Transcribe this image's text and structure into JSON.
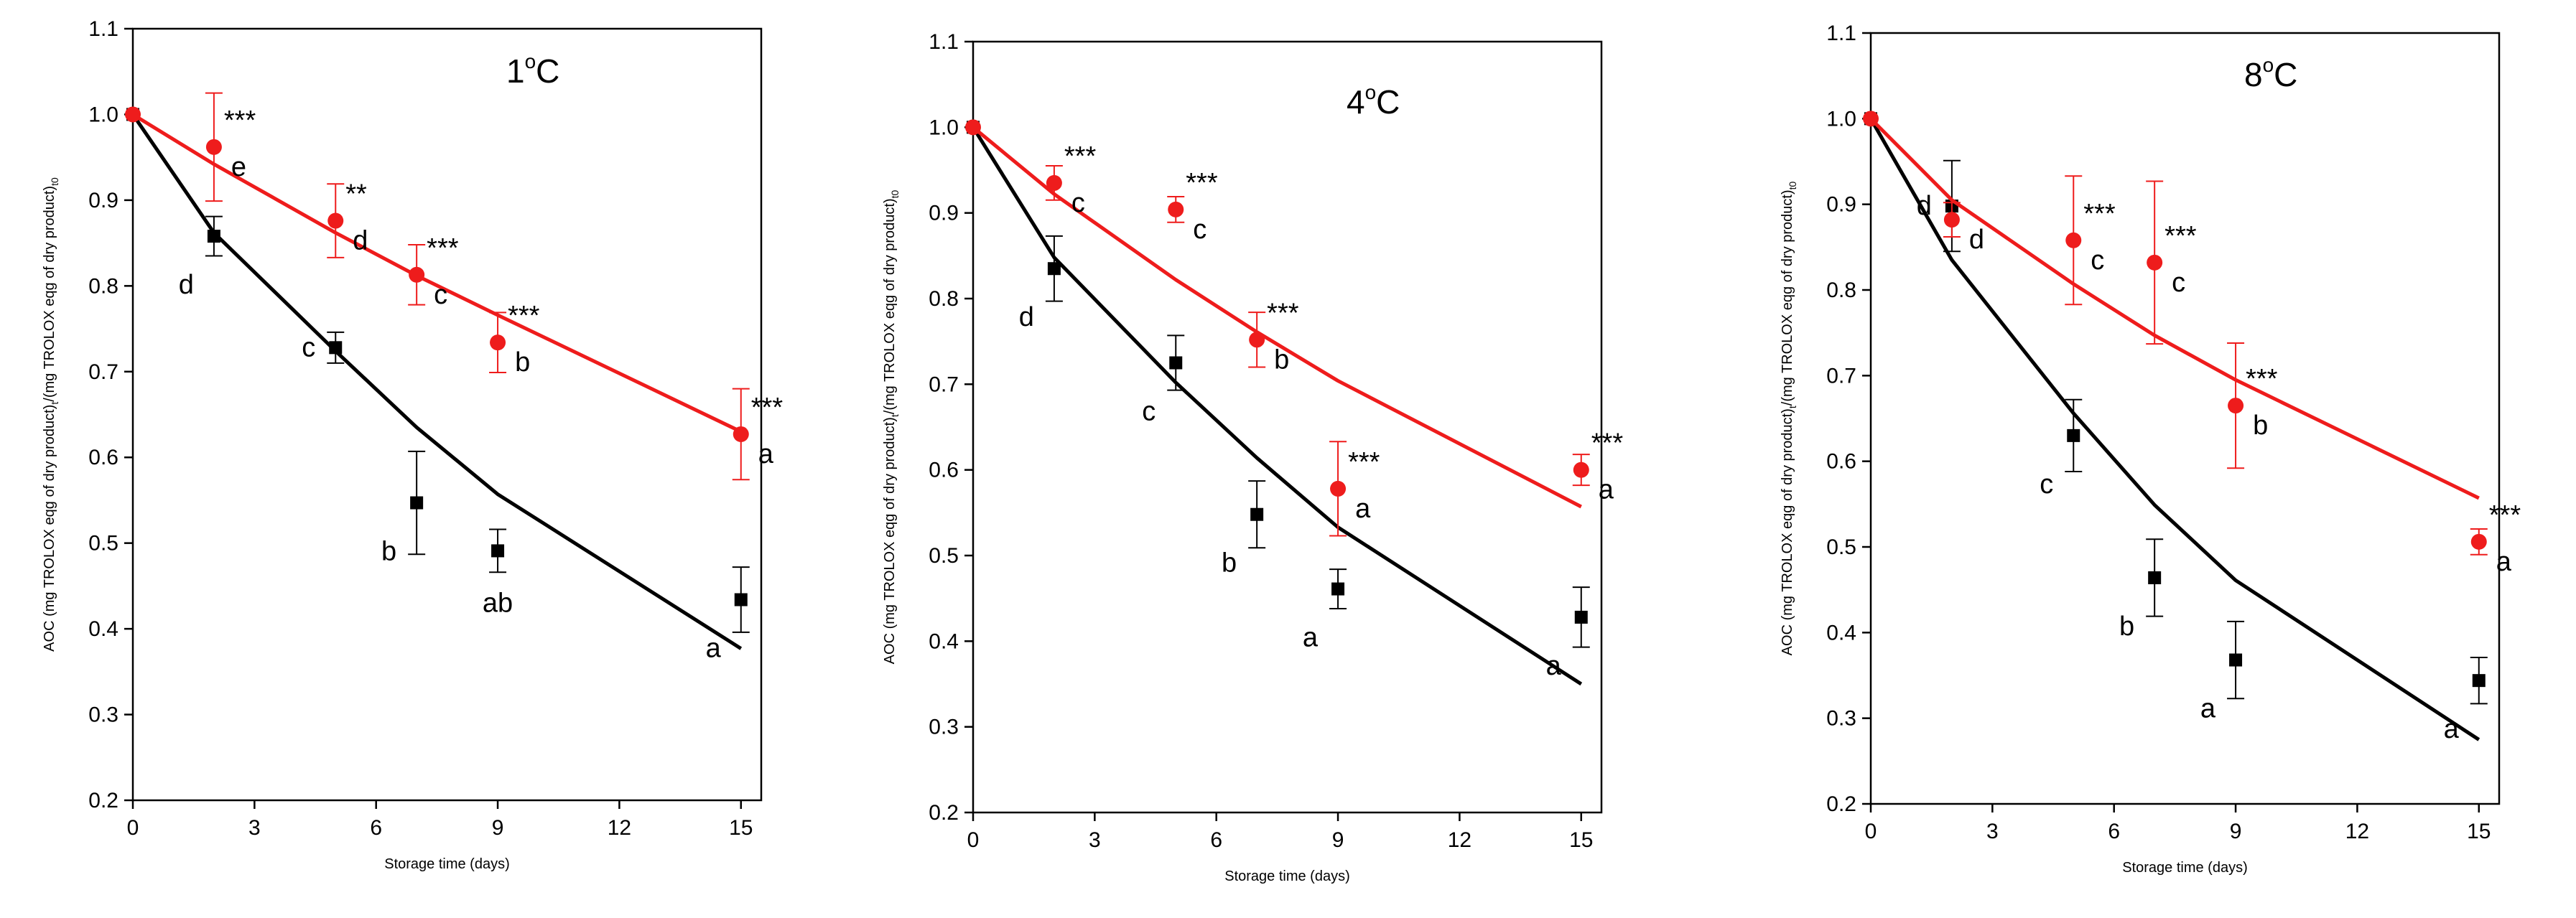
{
  "colors": {
    "measured_a": "#000000",
    "measured_b": "#ee1c1c",
    "axis": "#000000",
    "background": "#ffffff"
  },
  "chart_data": [
    {
      "type": "scatter",
      "title": "1°C",
      "title_base": "1",
      "title_unit": "C",
      "xlabel": "Storage time (days)",
      "ylabel_parts": [
        "AOC (mg TROLOX eqg of dry product)",
        "t",
        "/(mg TROLOX eqg of dry product)",
        "t0"
      ],
      "xlim": [
        0,
        15.5
      ],
      "ylim": [
        0.2,
        1.1
      ],
      "x_ticks": [
        0,
        3,
        6,
        9,
        12,
        15
      ],
      "y_ticks": [
        0.2,
        0.3,
        0.4,
        0.5,
        0.6,
        0.7,
        0.8,
        0.9,
        1.0,
        1.1
      ],
      "y_tick_labels": [
        "0.2",
        "0.3",
        "0.4",
        "0.5",
        "0.6",
        "0.7",
        "0.8",
        "0.9",
        "1.0",
        "1.1"
      ],
      "series": [
        {
          "color": "#000000",
          "marker": "square",
          "x": [
            0,
            2,
            5,
            7,
            9,
            15
          ],
          "y": [
            1.0,
            0.858,
            0.728,
            0.547,
            0.491,
            0.434
          ],
          "err": [
            0,
            0.023,
            0.018,
            0.06,
            0.025,
            0.038
          ],
          "labels": [
            "",
            "d",
            "c",
            "b",
            "ab",
            "a"
          ],
          "label_pos": [
            "",
            "bl",
            "l",
            "bl",
            "b",
            "bl"
          ],
          "model": {
            "x": [
              0,
              2,
              5,
              7,
              9,
              15
            ],
            "y": [
              1.0,
              0.862,
              0.724,
              0.635,
              0.557,
              0.377
            ]
          }
        },
        {
          "color": "#ee1c1c",
          "marker": "circle",
          "x": [
            0,
            2,
            5,
            7,
            9,
            15
          ],
          "y": [
            1.0,
            0.962,
            0.876,
            0.813,
            0.734,
            0.627
          ],
          "err": [
            0,
            0.063,
            0.043,
            0.035,
            0.035,
            0.053
          ],
          "labels": [
            "",
            "e",
            "d",
            "c",
            "b",
            "a"
          ],
          "label_pos": [
            "",
            "r",
            "r",
            "r",
            "r",
            "r"
          ],
          "sig": [
            "",
            "***",
            "**",
            "***",
            "***",
            "***"
          ],
          "model": {
            "x": [
              0,
              2,
              5,
              7,
              9,
              15
            ],
            "y": [
              1.0,
              0.942,
              0.862,
              0.812,
              0.766,
              0.63
            ]
          }
        }
      ]
    },
    {
      "type": "scatter",
      "title": "4°C",
      "title_base": "4",
      "title_unit": "C",
      "xlabel": "Storage time (days)",
      "ylabel_parts": [
        "AOC (mg TROLOX eqg of dry product)",
        "t",
        "/(mg TROLOX eqg of dry product)",
        "t0"
      ],
      "xlim": [
        0,
        15.5
      ],
      "ylim": [
        0.2,
        1.1
      ],
      "x_ticks": [
        0,
        3,
        6,
        9,
        12,
        15
      ],
      "y_ticks": [
        0.2,
        0.3,
        0.4,
        0.5,
        0.6,
        0.7,
        0.8,
        0.9,
        1.0,
        1.1
      ],
      "y_tick_labels": [
        "0.2",
        "0.3",
        "0.4",
        "0.5",
        "0.6",
        "0.7",
        "0.8",
        "0.9",
        "1.0",
        "1.1"
      ],
      "series": [
        {
          "color": "#000000",
          "marker": "square",
          "x": [
            0,
            2,
            5,
            7,
            9,
            15
          ],
          "y": [
            1.0,
            0.835,
            0.725,
            0.548,
            0.461,
            0.428
          ],
          "err": [
            0,
            0.038,
            0.032,
            0.039,
            0.023,
            0.035
          ],
          "labels": [
            "",
            "d",
            "c",
            "b",
            "a",
            "a"
          ],
          "label_pos": [
            "",
            "bl",
            "bl",
            "bl",
            "bl",
            "bl"
          ],
          "model": {
            "x": [
              0,
              2,
              5,
              7,
              9,
              15
            ],
            "y": [
              1.0,
              0.848,
              0.702,
              0.614,
              0.533,
              0.35
            ]
          }
        },
        {
          "color": "#ee1c1c",
          "marker": "circle",
          "x": [
            0,
            2,
            5,
            7,
            9,
            15
          ],
          "y": [
            1.0,
            0.935,
            0.904,
            0.752,
            0.578,
            0.6
          ],
          "err": [
            0,
            0.02,
            0.015,
            0.032,
            0.055,
            0.018
          ],
          "labels": [
            "",
            "c",
            "c",
            "b",
            "a",
            "a"
          ],
          "label_pos": [
            "",
            "r",
            "r",
            "r",
            "r",
            "r"
          ],
          "sig": [
            "",
            "***",
            "***",
            "***",
            "***",
            "***"
          ],
          "model": {
            "x": [
              0,
              2,
              5,
              7,
              9,
              15
            ],
            "y": [
              1.0,
              0.922,
              0.822,
              0.761,
              0.704,
              0.557
            ]
          }
        }
      ]
    },
    {
      "type": "scatter",
      "title": "8°C",
      "title_base": "8",
      "title_unit": "C",
      "xlabel": "Storage time (days)",
      "ylabel_parts": [
        "AOC (mg TROLOX eqg of dry product)",
        "t",
        "/(mg TROLOX eqg of dry product)",
        "t0"
      ],
      "xlim": [
        0,
        15.5
      ],
      "ylim": [
        0.2,
        1.1
      ],
      "x_ticks": [
        0,
        3,
        6,
        9,
        12,
        15
      ],
      "y_ticks": [
        0.2,
        0.3,
        0.4,
        0.5,
        0.6,
        0.7,
        0.8,
        0.9,
        1.0,
        1.1
      ],
      "y_tick_labels": [
        "0.2",
        "0.3",
        "0.4",
        "0.5",
        "0.6",
        "0.7",
        "0.8",
        "0.9",
        "1.0",
        "1.1"
      ],
      "series": [
        {
          "color": "#000000",
          "marker": "square",
          "x": [
            0,
            2,
            5,
            7,
            9,
            15
          ],
          "y": [
            1.0,
            0.898,
            0.63,
            0.464,
            0.368,
            0.344
          ],
          "err": [
            0,
            0.053,
            0.042,
            0.045,
            0.045,
            0.027
          ],
          "labels": [
            "",
            "d",
            "c",
            "b",
            "a",
            "a"
          ],
          "label_pos": [
            "",
            "l",
            "bl",
            "bl",
            "bl",
            "bl"
          ],
          "model": {
            "x": [
              0,
              2,
              5,
              7,
              9,
              15
            ],
            "y": [
              1.0,
              0.835,
              0.656,
              0.549,
              0.461,
              0.275
            ]
          }
        },
        {
          "color": "#ee1c1c",
          "marker": "circle",
          "x": [
            0,
            2,
            5,
            7,
            9,
            15
          ],
          "y": [
            1.0,
            0.882,
            0.858,
            0.832,
            0.665,
            0.506
          ],
          "err": [
            0,
            0.02,
            0.075,
            0.095,
            0.073,
            0.015
          ],
          "labels": [
            "",
            "d",
            "c",
            "c",
            "b",
            "a"
          ],
          "label_pos": [
            "",
            "r",
            "r",
            "r",
            "r",
            "r"
          ],
          "sig": [
            "",
            "",
            "***",
            "***",
            "***",
            "***"
          ],
          "model": {
            "x": [
              0,
              2,
              5,
              7,
              9,
              15
            ],
            "y": [
              1.0,
              0.905,
              0.807,
              0.747,
              0.695,
              0.557
            ]
          }
        }
      ]
    }
  ]
}
